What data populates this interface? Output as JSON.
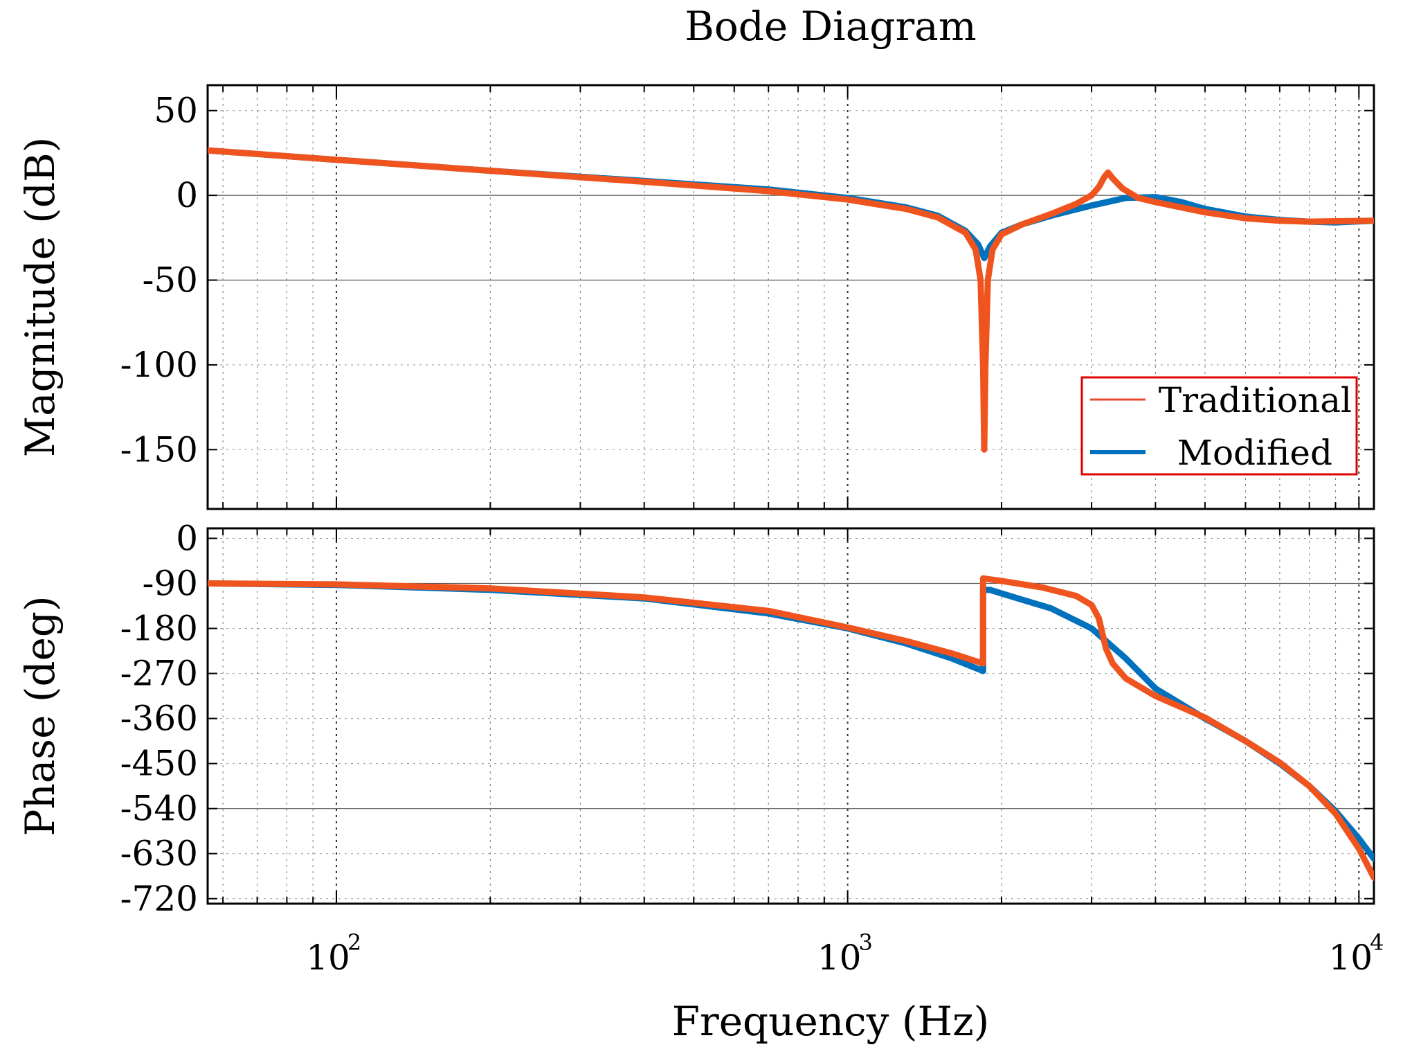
{
  "chart_data": {
    "type": "line",
    "title": "Bode Diagram",
    "xlabel": "Frequency  (Hz)",
    "xscale": "log",
    "xlim": [
      56,
      10700
    ],
    "xticks": [
      {
        "value": 100,
        "base": "10",
        "exp": "2"
      },
      {
        "value": 1000,
        "base": "10",
        "exp": "3"
      },
      {
        "value": 10000,
        "base": "10",
        "exp": "4"
      }
    ],
    "legend": {
      "location": "bottom-right of magnitude panel",
      "entries": [
        {
          "name": "Traditional",
          "color": "#e8492f"
        },
        {
          "name": "Modified",
          "color": "#0072bd"
        }
      ],
      "border_color": "#e00000"
    },
    "panels": [
      {
        "name": "magnitude",
        "ylabel": "Magnitude (dB)",
        "ylim": [
          -185,
          65
        ],
        "yticks": [
          "50",
          "0",
          "-50",
          "-100",
          "-150"
        ],
        "ytick_values": [
          50,
          0,
          -50,
          -100,
          -150
        ],
        "reference_lines": [
          0,
          -50
        ],
        "series": [
          {
            "name": "Modified",
            "color": "#0072bd",
            "points": [
              [
                56,
                26.5
              ],
              [
                100,
                21
              ],
              [
                200,
                14.5
              ],
              [
                400,
                8.5
              ],
              [
                700,
                3.5
              ],
              [
                1000,
                -1.5
              ],
              [
                1300,
                -7
              ],
              [
                1500,
                -12
              ],
              [
                1700,
                -21
              ],
              [
                1800,
                -29
              ],
              [
                1850,
                -37
              ],
              [
                1900,
                -30
              ],
              [
                2000,
                -22
              ],
              [
                2200,
                -17
              ],
              [
                2500,
                -12
              ],
              [
                3000,
                -6
              ],
              [
                3500,
                -1.5
              ],
              [
                4000,
                -1
              ],
              [
                4500,
                -4
              ],
              [
                5000,
                -8
              ],
              [
                6000,
                -12.5
              ],
              [
                7000,
                -14.5
              ],
              [
                8000,
                -15.5
              ],
              [
                9000,
                -16
              ],
              [
                10700,
                -15
              ]
            ]
          },
          {
            "name": "Traditional",
            "color": "#f0541e",
            "points": [
              [
                56,
                26.5
              ],
              [
                100,
                21
              ],
              [
                200,
                14.5
              ],
              [
                400,
                8
              ],
              [
                700,
                2.5
              ],
              [
                1000,
                -2.5
              ],
              [
                1300,
                -8
              ],
              [
                1500,
                -13
              ],
              [
                1700,
                -22
              ],
              [
                1780,
                -32
              ],
              [
                1820,
                -50
              ],
              [
                1840,
                -100
              ],
              [
                1850,
                -150
              ],
              [
                1860,
                -100
              ],
              [
                1880,
                -50
              ],
              [
                1920,
                -32
              ],
              [
                2000,
                -23
              ],
              [
                2200,
                -17
              ],
              [
                2500,
                -11
              ],
              [
                2800,
                -5
              ],
              [
                3000,
                0
              ],
              [
                3100,
                5
              ],
              [
                3180,
                11
              ],
              [
                3230,
                13.5
              ],
              [
                3300,
                10
              ],
              [
                3450,
                4
              ],
              [
                3700,
                -1.5
              ],
              [
                4000,
                -4
              ],
              [
                5000,
                -10
              ],
              [
                6000,
                -13.5
              ],
              [
                7000,
                -15
              ],
              [
                8000,
                -15.5
              ],
              [
                10700,
                -15
              ]
            ]
          }
        ]
      },
      {
        "name": "phase",
        "ylabel": "Phase (deg)",
        "ylim": [
          -730,
          20
        ],
        "yticks": [
          "0",
          "-90",
          "-180",
          "-270",
          "-360",
          "-450",
          "-540",
          "-630",
          "-720"
        ],
        "ytick_values": [
          0,
          -90,
          -180,
          -270,
          -360,
          -450,
          -540,
          -630,
          -720
        ],
        "reference_lines": [
          -90,
          -540
        ],
        "series": [
          {
            "name": "Modified",
            "color": "#0072bd",
            "points": [
              [
                56,
                -90
              ],
              [
                100,
                -93
              ],
              [
                200,
                -103
              ],
              [
                400,
                -120
              ],
              [
                700,
                -150
              ],
              [
                1000,
                -180
              ],
              [
                1300,
                -210
              ],
              [
                1600,
                -240
              ],
              [
                1840,
                -265
              ],
              [
                1840,
                -103
              ],
              [
                1900,
                -103
              ],
              [
                2200,
                -123
              ],
              [
                2500,
                -140
              ],
              [
                3000,
                -180
              ],
              [
                3500,
                -240
              ],
              [
                4000,
                -300
              ],
              [
                5000,
                -360
              ],
              [
                6000,
                -405
              ],
              [
                7000,
                -450
              ],
              [
                8000,
                -495
              ],
              [
                9000,
                -545
              ],
              [
                10000,
                -600
              ],
              [
                10700,
                -640
              ]
            ]
          },
          {
            "name": "Traditional",
            "color": "#f0541e",
            "points": [
              [
                56,
                -90
              ],
              [
                100,
                -92
              ],
              [
                200,
                -100
              ],
              [
                400,
                -118
              ],
              [
                700,
                -145
              ],
              [
                1000,
                -178
              ],
              [
                1300,
                -205
              ],
              [
                1600,
                -230
              ],
              [
                1840,
                -250
              ],
              [
                1840,
                -80
              ],
              [
                2000,
                -85
              ],
              [
                2400,
                -98
              ],
              [
                2800,
                -115
              ],
              [
                3000,
                -133
              ],
              [
                3100,
                -160
              ],
              [
                3150,
                -190
              ],
              [
                3200,
                -220
              ],
              [
                3300,
                -250
              ],
              [
                3500,
                -280
              ],
              [
                4000,
                -315
              ],
              [
                5000,
                -358
              ],
              [
                6000,
                -405
              ],
              [
                7000,
                -448
              ],
              [
                8000,
                -495
              ],
              [
                9000,
                -550
              ],
              [
                10000,
                -620
              ],
              [
                10700,
                -678
              ]
            ]
          }
        ]
      }
    ]
  }
}
